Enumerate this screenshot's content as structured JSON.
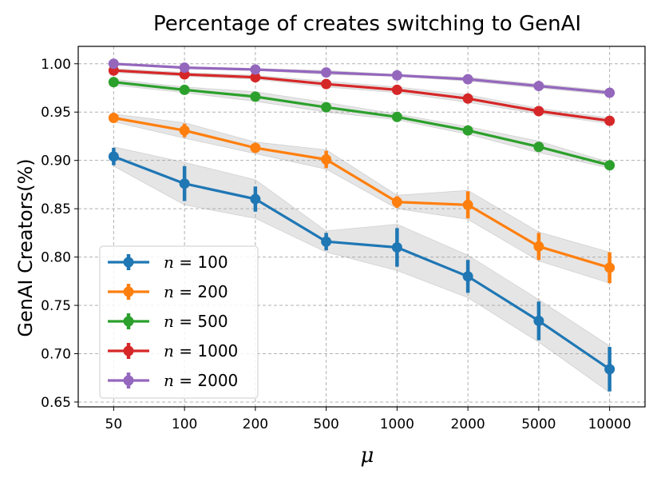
{
  "chart_data": {
    "type": "line",
    "title": "Percentage of creates switching to GenAI",
    "xlabel": "μ",
    "ylabel": "GenAI Creators(%)",
    "categories": [
      "50",
      "100",
      "200",
      "500",
      "1000",
      "2000",
      "5000",
      "10000"
    ],
    "ylim": [
      0.645,
      1.018
    ],
    "yticks": [
      "0.65",
      "0.70",
      "0.75",
      "0.80",
      "0.85",
      "0.90",
      "0.95",
      "1.00"
    ],
    "ytick_values": [
      0.65,
      0.7,
      0.75,
      0.8,
      0.85,
      0.9,
      0.95,
      1.0
    ],
    "grid": true,
    "legend_position": "lower-left",
    "series": [
      {
        "name": "n = 100",
        "legend_var": "n",
        "legend_eq": " = ",
        "legend_val": "100",
        "color": "#1f77b4",
        "values": [
          0.904,
          0.876,
          0.86,
          0.816,
          0.81,
          0.78,
          0.734,
          0.684
        ],
        "errors": [
          0.009,
          0.018,
          0.013,
          0.009,
          0.02,
          0.017,
          0.02,
          0.023
        ],
        "band": [
          0.01,
          0.022,
          0.02,
          0.011,
          0.024,
          0.022,
          0.022,
          0.024
        ]
      },
      {
        "name": "n = 200",
        "legend_var": "n",
        "legend_eq": " = ",
        "legend_val": "200",
        "color": "#ff7f0e",
        "values": [
          0.944,
          0.931,
          0.913,
          0.901,
          0.857,
          0.854,
          0.811,
          0.789
        ],
        "errors": [
          0.004,
          0.007,
          0.004,
          0.009,
          0.006,
          0.014,
          0.014,
          0.016
        ],
        "band": [
          0.004,
          0.008,
          0.006,
          0.01,
          0.007,
          0.015,
          0.015,
          0.016
        ]
      },
      {
        "name": "n = 500",
        "legend_var": "n",
        "legend_eq": " = ",
        "legend_val": "500",
        "color": "#2ca02c",
        "values": [
          0.981,
          0.973,
          0.966,
          0.955,
          0.945,
          0.931,
          0.914,
          0.895
        ],
        "errors": [
          0.002,
          0.002,
          0.004,
          0.004,
          0.002,
          0.003,
          0.005,
          0.002
        ],
        "band": [
          0.003,
          0.003,
          0.005,
          0.005,
          0.003,
          0.004,
          0.006,
          0.003
        ]
      },
      {
        "name": "n = 1000",
        "legend_var": "n",
        "legend_eq": " = ",
        "legend_val": "1000",
        "color": "#d62728",
        "values": [
          0.993,
          0.989,
          0.986,
          0.979,
          0.973,
          0.964,
          0.951,
          0.941
        ],
        "errors": [
          0.001,
          0.001,
          0.001,
          0.002,
          0.002,
          0.003,
          0.002,
          0.002
        ],
        "band": [
          0.002,
          0.002,
          0.002,
          0.003,
          0.003,
          0.004,
          0.003,
          0.003
        ]
      },
      {
        "name": "n = 2000",
        "legend_var": "n",
        "legend_eq": " = ",
        "legend_val": "2000",
        "color": "#9467bd",
        "values": [
          1.0,
          0.996,
          0.994,
          0.991,
          0.988,
          0.984,
          0.977,
          0.97
        ],
        "errors": [
          0.001,
          0.001,
          0.001,
          0.001,
          0.001,
          0.001,
          0.002,
          0.001
        ],
        "band": [
          0.001,
          0.001,
          0.001,
          0.002,
          0.001,
          0.002,
          0.002,
          0.002
        ]
      }
    ]
  }
}
